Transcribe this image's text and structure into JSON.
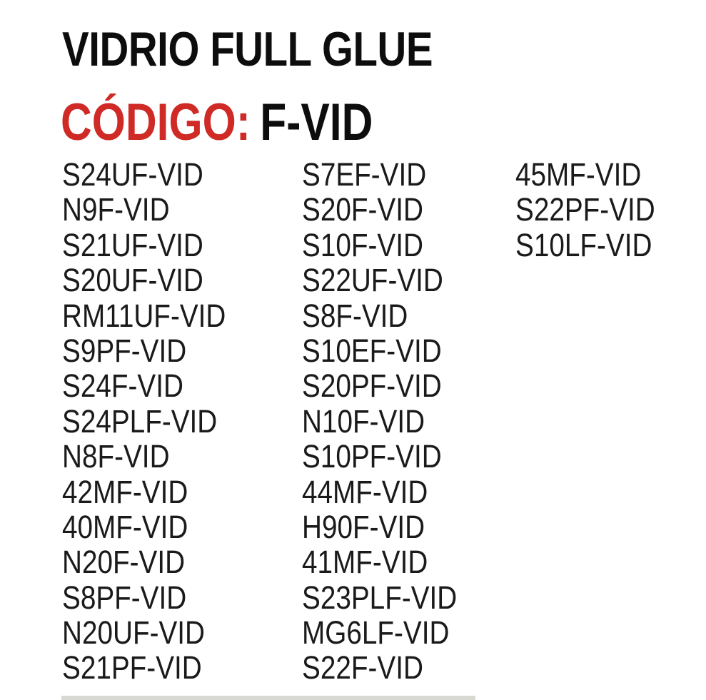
{
  "title": "VIDRIO FULL GLUE",
  "code": {
    "label": "CÓDIGO:",
    "value": "F-VID",
    "label_color": "#d02a26"
  },
  "columns": [
    [
      "S24UF-VID",
      "N9F-VID",
      "S21UF-VID",
      "S20UF-VID",
      "RM11UF-VID",
      "S9PF-VID",
      "S24F-VID",
      "S24PLF-VID",
      "N8F-VID",
      "42MF-VID",
      "40MF-VID",
      "N20F-VID",
      "S8PF-VID",
      "N20UF-VID",
      "S21PF-VID"
    ],
    [
      "S7EF-VID",
      "S20F-VID",
      "S10F-VID",
      "S22UF-VID",
      "S8F-VID",
      "S10EF-VID",
      "S20PF-VID",
      "N10F-VID",
      "S10PF-VID",
      "44MF-VID",
      "H90F-VID",
      "41MF-VID",
      "S23PLF-VID",
      "MG6LF-VID",
      "S22F-VID"
    ],
    [
      "45MF-VID",
      "S22PF-VID",
      "S10LF-VID"
    ]
  ]
}
